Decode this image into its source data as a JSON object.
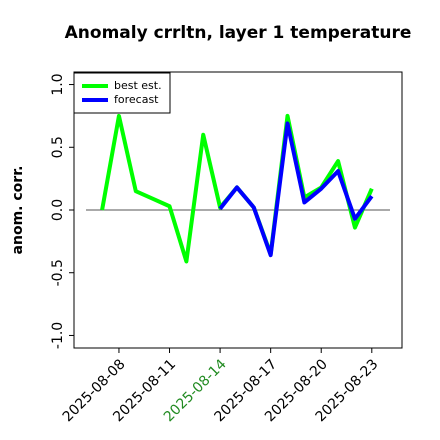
{
  "chart_data": {
    "type": "line",
    "title": "Anomaly crrltn, layer 1 temperature",
    "ylabel": "anom. corr.",
    "x": [
      "2025-08-07",
      "2025-08-08",
      "2025-08-09",
      "2025-08-10",
      "2025-08-11",
      "2025-08-12",
      "2025-08-13",
      "2025-08-14",
      "2025-08-15",
      "2025-08-16",
      "2025-08-17",
      "2025-08-18",
      "2025-08-19",
      "2025-08-20",
      "2025-08-21",
      "2025-08-22",
      "2025-08-23"
    ],
    "series": [
      {
        "name": "best est.",
        "color": "#00ff00",
        "values": [
          0.0,
          0.75,
          0.15,
          0.09,
          0.03,
          -0.41,
          0.6,
          0.02,
          0.18,
          0.02,
          -0.35,
          0.75,
          0.1,
          0.18,
          0.39,
          -0.14,
          0.17
        ]
      },
      {
        "name": "forecast",
        "color": "#0000ff",
        "values": [
          null,
          null,
          null,
          null,
          null,
          null,
          null,
          0.01,
          0.18,
          0.02,
          -0.36,
          0.69,
          0.06,
          0.17,
          0.31,
          -0.07,
          0.11
        ]
      }
    ],
    "xlim": [
      "2025-08-05T08:00:00Z",
      "2025-08-24T19:00:00Z"
    ],
    "xticks": [
      "2025-08-08",
      "2025-08-11",
      "2025-08-14",
      "2025-08-17",
      "2025-08-20",
      "2025-08-23"
    ],
    "highlight_xtick": "2025-08-14",
    "highlight_color": "#228b22",
    "ylim": [
      -1.1,
      1.1
    ],
    "yticks": [
      {
        "value": -1,
        "label": "-1.0"
      },
      -0.5,
      {
        "value": 0,
        "label": "0.0"
      },
      0.5,
      {
        "value": 1,
        "label": "1.0"
      }
    ],
    "hline": 0,
    "legend": "upper left"
  }
}
